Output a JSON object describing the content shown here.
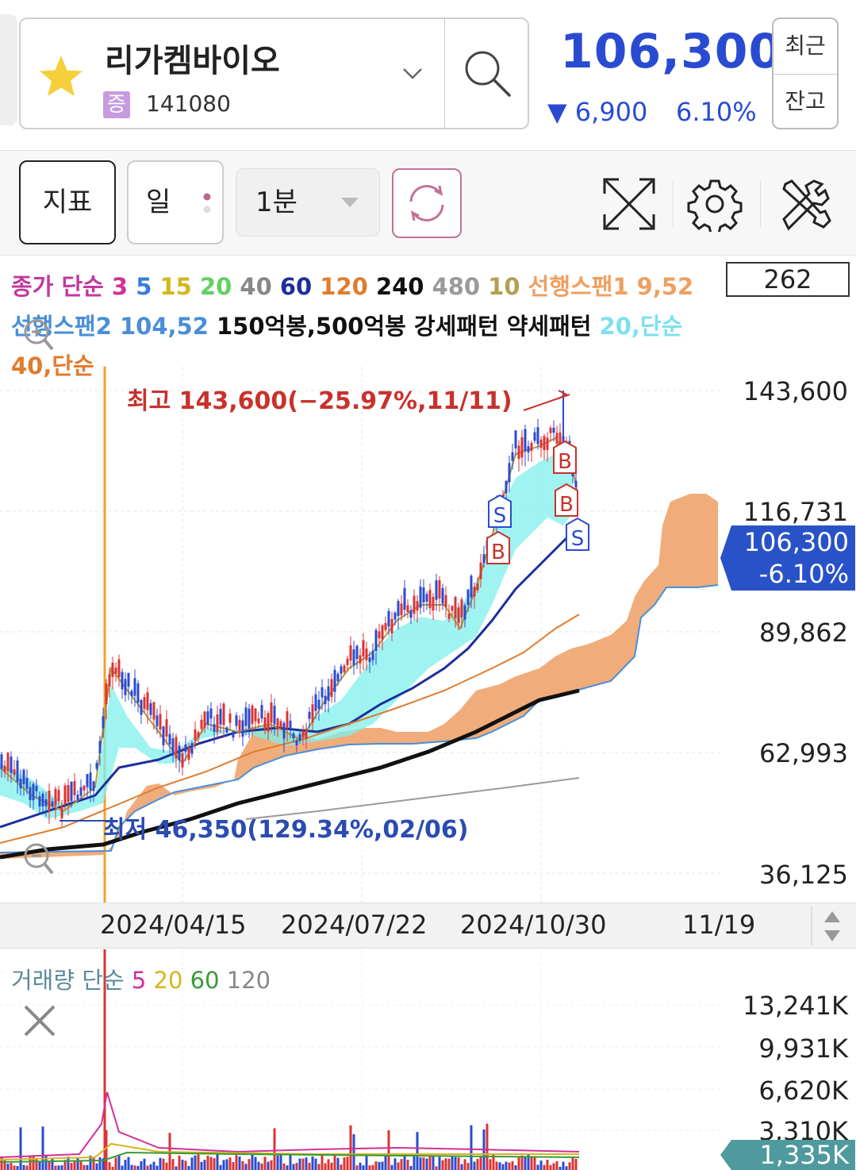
{
  "header": {
    "stock_name": "리가켐바이오",
    "market_badge": "증",
    "stock_code": "141080",
    "price": "106,300",
    "change": "▼ 6,900",
    "change_rate": "6.10%",
    "side_buttons": [
      "최근",
      "잔고"
    ]
  },
  "toolbar": {
    "indicator_label": "지표",
    "period_label": "일",
    "interval_label": "1분"
  },
  "main_legend": {
    "line1": [
      {
        "text": "종가 단순",
        "color": "#c03a9e"
      },
      {
        "text": "3",
        "color": "#d0309a"
      },
      {
        "text": "5",
        "color": "#3a7be0"
      },
      {
        "text": "15",
        "color": "#d6b51c"
      },
      {
        "text": "20",
        "color": "#5fd15f"
      },
      {
        "text": "40",
        "color": "#888888"
      },
      {
        "text": "60",
        "color": "#1c2f9a"
      },
      {
        "text": "120",
        "color": "#e07c2e"
      },
      {
        "text": "240",
        "color": "#111111"
      },
      {
        "text": "480",
        "color": "#9a9a9a"
      },
      {
        "text": "10",
        "color": "#b3a050"
      },
      {
        "text": "선행스팬1 9,52",
        "color": "#eea060"
      }
    ],
    "line2": [
      {
        "text": "선행스팬2 104,52",
        "color": "#4a8ed8"
      },
      {
        "text": "150억봉,500억봉 강세패턴 약세패턴",
        "color": "#111111"
      },
      {
        "text": "20,단순",
        "color": "#7ee0ee"
      }
    ],
    "line3": [
      {
        "text": "40,단순",
        "color": "#e07c2e"
      }
    ],
    "count_box": "262"
  },
  "price_axis": [
    "143,600",
    "116,731",
    "89,862",
    "62,993",
    "36,125"
  ],
  "current_price_tag": {
    "price": "106,300",
    "rate": "-6.10%"
  },
  "annotations": {
    "high": "최고 143,600(−25.97%,11/11)",
    "low": "최저 46,350(129.34%,02/06)"
  },
  "signals": [
    "S",
    "B",
    "B",
    "B",
    "S"
  ],
  "x_axis": [
    "2024/04/15",
    "2024/07/22",
    "2024/10/30",
    "11/19"
  ],
  "volume_legend": [
    {
      "text": "거래량 단순",
      "color": "#5a8a9a"
    },
    {
      "text": "5",
      "color": "#d0309a"
    },
    {
      "text": "20",
      "color": "#d6b51c"
    },
    {
      "text": "60",
      "color": "#3a9a3a"
    },
    {
      "text": "120",
      "color": "#888888"
    }
  ],
  "volume_axis": [
    "13,241K",
    "9,931K",
    "6,620K",
    "3,310K"
  ],
  "volume_tag": "1,335K",
  "colors": {
    "accent_blue": "#2a4bd1",
    "up_red": "#d33",
    "ichimoku_cloud": "#eea36c",
    "ma_fill": "#7ff0ec"
  }
}
